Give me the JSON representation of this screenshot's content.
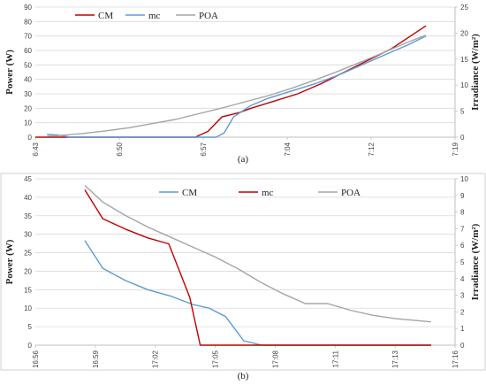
{
  "chart_data": [
    {
      "type": "line",
      "caption": "(a)",
      "ylabel": "Power  (W)",
      "y2label": "Irradiance (W/m²)",
      "x_ticks": [
        "6:43",
        "6:50",
        "6:57",
        "7:04",
        "7:12",
        "7:19"
      ],
      "x_range": [
        0,
        36
      ],
      "ylim": [
        0,
        90
      ],
      "y_ticks": [
        0,
        10,
        20,
        30,
        40,
        50,
        60,
        70,
        80,
        90
      ],
      "y2lim": [
        0,
        25
      ],
      "y2_ticks": [
        0,
        5,
        10,
        15,
        20,
        25
      ],
      "legend_position": "top-left",
      "series": [
        {
          "name": "CM",
          "color": "#c00000",
          "axis": "left",
          "x": [
            0,
            13,
            13.7,
            14.8,
            16,
            17.5,
            18.5,
            20.5,
            22.5,
            24.5,
            26.5,
            28.5,
            30.5,
            32,
            33.5
          ],
          "y": [
            0,
            0,
            0,
            4,
            14,
            17,
            20,
            25,
            30,
            37,
            45,
            53,
            61,
            69,
            77
          ]
        },
        {
          "name": "mc",
          "color": "#5b9bd5",
          "axis": "left",
          "x": [
            1,
            2,
            3,
            14.5,
            15.5,
            16.2,
            17,
            18.5,
            20,
            22,
            24,
            26,
            28,
            30,
            32,
            33.5
          ],
          "y": [
            2,
            1.5,
            0,
            0,
            0,
            3,
            14,
            22,
            27,
            32,
            37,
            43,
            50,
            57,
            64,
            70
          ]
        },
        {
          "name": "POA",
          "color": "#a5a5a5",
          "axis": "right",
          "x": [
            1,
            2,
            4,
            6,
            8,
            10,
            12,
            14,
            16,
            18,
            20,
            22,
            24,
            26,
            28,
            30,
            32,
            33.5
          ],
          "y": [
            0.2,
            0.3,
            0.7,
            1.2,
            1.8,
            2.6,
            3.4,
            4.5,
            5.6,
            6.8,
            8.0,
            9.4,
            11.0,
            12.7,
            14.5,
            16.4,
            18.3,
            19.6
          ]
        }
      ]
    },
    {
      "type": "line",
      "caption": "(b)",
      "ylabel": "Power  (W)",
      "y2label": "Irradiance (W/m²)",
      "x_ticks": [
        "16:56",
        "16:59",
        "17:02",
        "17:05",
        "17:08",
        "17:11",
        "17:13",
        "17:16"
      ],
      "x_range": [
        0,
        28
      ],
      "ylim": [
        0,
        45
      ],
      "y_ticks": [
        0,
        5,
        10,
        15,
        20,
        25,
        30,
        35,
        40,
        45
      ],
      "y2lim": [
        0,
        10
      ],
      "y2_ticks": [
        0,
        1,
        2,
        3,
        4,
        5,
        6,
        7,
        8,
        9,
        10
      ],
      "legend_position": "top",
      "series": [
        {
          "name": "CM",
          "color": "#5b9bd5",
          "axis": "left",
          "x": [
            3.3,
            4.5,
            6,
            7.5,
            9,
            10.5,
            11.6,
            12.7,
            13.9,
            15.1,
            26.4
          ],
          "y": [
            28.3,
            20.8,
            17.5,
            15.0,
            13.3,
            11.0,
            10.0,
            7.7,
            1.2,
            0,
            0
          ]
        },
        {
          "name": "mc",
          "color": "#c00000",
          "axis": "left",
          "x": [
            3.3,
            4.5,
            6,
            7.5,
            8.9,
            10.3,
            11.0,
            16,
            26.4
          ],
          "y": [
            42.0,
            34.2,
            31.4,
            29.0,
            27.4,
            13.0,
            0,
            0,
            0
          ]
        },
        {
          "name": "POA",
          "color": "#a5a5a5",
          "axis": "right",
          "x": [
            3.3,
            4.5,
            6,
            7.5,
            9,
            10.5,
            12,
            13.5,
            15,
            16.5,
            18,
            19.5,
            21,
            22.5,
            24,
            26.4
          ],
          "y": [
            9.6,
            8.6,
            7.8,
            7.1,
            6.5,
            5.9,
            5.3,
            4.6,
            3.8,
            3.1,
            2.5,
            2.5,
            2.1,
            1.8,
            1.6,
            1.4
          ]
        }
      ]
    }
  ]
}
